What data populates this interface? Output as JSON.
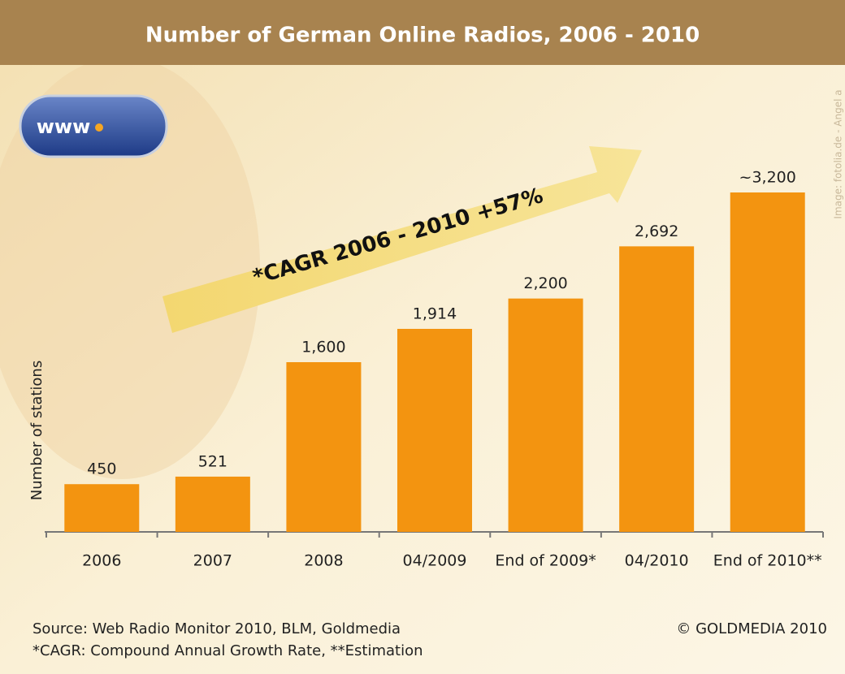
{
  "chart_data": {
    "type": "bar",
    "title": "Number of German Online Radios, 2006 - 2010",
    "categories": [
      "2006",
      "2007",
      "2008",
      "04/2009",
      "End of 2009*",
      "04/2010",
      "End of 2010**"
    ],
    "values": [
      450,
      521,
      1600,
      1914,
      2200,
      2692,
      3200
    ],
    "value_labels": [
      "450",
      "521",
      "1,600",
      "1,914",
      "2,200",
      "2,692",
      "~3,200"
    ],
    "color": "#f39410",
    "y_label": "Number of stations",
    "annotation": "*CAGR 2006 - 2010 +57%"
  },
  "logo_text": "www",
  "source": "Source: Web Radio Monitor 2010, BLM, Goldmedia",
  "footnote": "*CAGR: Compound Annual Growth Rate, **Estimation",
  "copyright": "© GOLDMEDIA 2010",
  "image_credit": "Image: fotolia.de - Angel a"
}
